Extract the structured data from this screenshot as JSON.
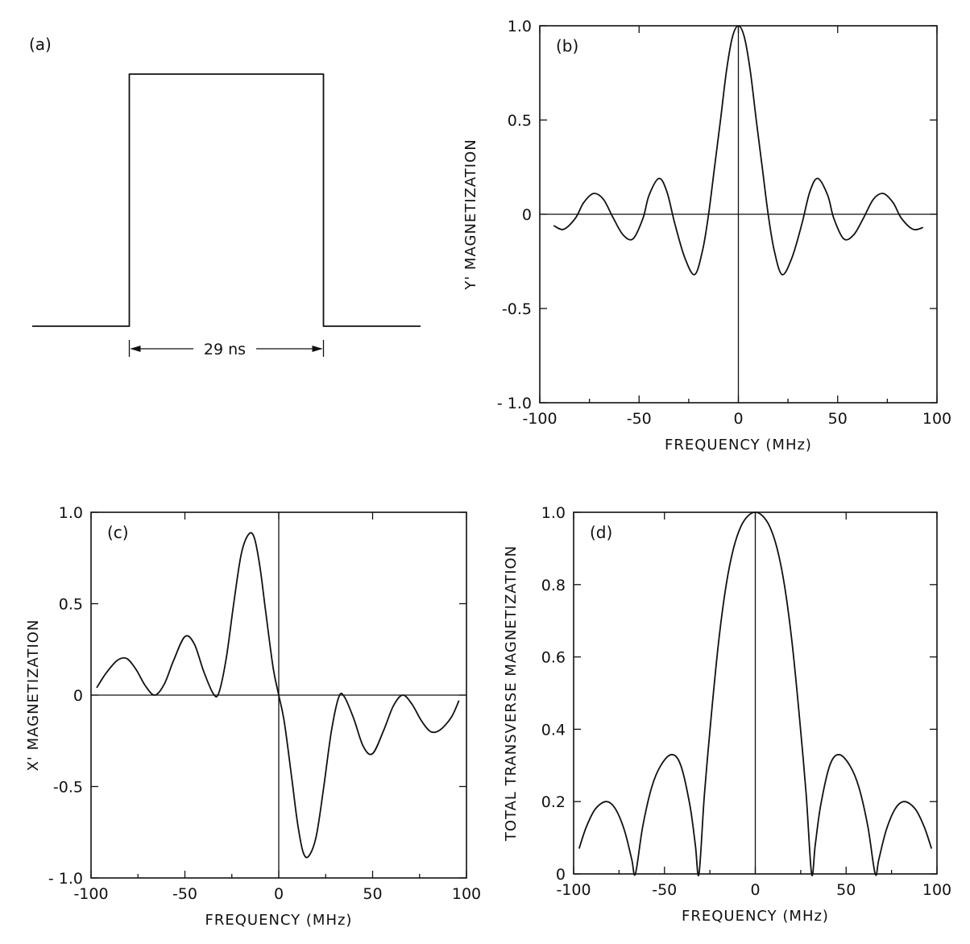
{
  "chart_data": [
    {
      "panel": "(a)",
      "type": "line",
      "title": "",
      "xlabel": "",
      "ylabel": "",
      "annotation": "29 ns",
      "x": [
        -2,
        -1,
        -1,
        1,
        1,
        2
      ],
      "y": [
        0,
        0,
        1,
        1,
        0,
        0
      ]
    },
    {
      "panel": "(b)",
      "type": "line",
      "title": "",
      "xlabel": "FREQUENCY (MHz)",
      "ylabel": "Y' MAGNETIZATION",
      "xlim": [
        -100,
        100
      ],
      "ylim": [
        -1.0,
        1.0
      ],
      "xticks": [
        -100,
        -50,
        0,
        50,
        100
      ],
      "xtick_labels": [
        "-100",
        "-50",
        "0",
        "50",
        "100"
      ],
      "yticks": [
        -1.0,
        -0.5,
        0,
        0.5,
        1.0
      ],
      "ytick_labels": [
        "- 1.0",
        "-0.5",
        "0",
        "0.5",
        "1.0"
      ],
      "x": [
        -93,
        -88,
        -82,
        -78,
        -73,
        -68,
        -63,
        -58,
        -53,
        -48,
        -45,
        -40,
        -36,
        -32,
        -27,
        -22,
        -18,
        -15,
        -12,
        -9,
        -6,
        -3,
        0,
        3,
        6,
        9,
        12,
        15,
        18,
        22,
        27,
        32,
        36,
        40,
        45,
        48,
        53,
        58,
        63,
        68,
        73,
        78,
        82,
        88,
        93
      ],
      "y": [
        -0.06,
        -0.08,
        -0.02,
        0.06,
        0.11,
        0.08,
        -0.02,
        -0.11,
        -0.13,
        -0.02,
        0.1,
        0.19,
        0.12,
        -0.05,
        -0.23,
        -0.32,
        -0.19,
        0.0,
        0.25,
        0.5,
        0.76,
        0.94,
        1.0,
        0.94,
        0.76,
        0.5,
        0.25,
        0.0,
        -0.19,
        -0.32,
        -0.23,
        -0.05,
        0.12,
        0.19,
        0.1,
        -0.02,
        -0.13,
        -0.11,
        -0.02,
        0.08,
        0.11,
        0.06,
        -0.02,
        -0.08,
        -0.07
      ]
    },
    {
      "panel": "(c)",
      "type": "line",
      "title": "",
      "xlabel": "FREQUENCY (MHz)",
      "ylabel": "X' MAGNETIZATION",
      "xlim": [
        -100,
        100
      ],
      "ylim": [
        -1.0,
        1.0
      ],
      "xticks": [
        -100,
        -50,
        0,
        50,
        100
      ],
      "xtick_labels": [
        "-100",
        "-50",
        "0",
        "50",
        "100"
      ],
      "yticks": [
        -1.0,
        -0.5,
        0,
        0.5,
        1.0
      ],
      "ytick_labels": [
        "- 1.0",
        "-0.5",
        "0",
        "0.5",
        "1.0"
      ],
      "x": [
        -97,
        -92,
        -86,
        -81,
        -76,
        -71,
        -66,
        -61,
        -56,
        -50,
        -45,
        -40,
        -35,
        -32,
        -28,
        -24,
        -20,
        -16,
        -13,
        -10,
        -7,
        -3,
        0,
        3,
        7,
        10,
        13,
        16,
        20,
        24,
        28,
        32,
        35,
        40,
        45,
        50,
        56,
        61,
        66,
        71,
        76,
        81,
        86,
        92,
        96
      ],
      "y": [
        0.04,
        0.12,
        0.19,
        0.2,
        0.14,
        0.05,
        0.0,
        0.06,
        0.19,
        0.32,
        0.28,
        0.13,
        0.01,
        0.01,
        0.2,
        0.5,
        0.77,
        0.88,
        0.86,
        0.7,
        0.46,
        0.15,
        0.0,
        -0.15,
        -0.46,
        -0.7,
        -0.86,
        -0.88,
        -0.77,
        -0.5,
        -0.2,
        -0.01,
        -0.01,
        -0.13,
        -0.28,
        -0.32,
        -0.19,
        -0.06,
        0.0,
        -0.05,
        -0.14,
        -0.2,
        -0.19,
        -0.12,
        -0.03
      ]
    },
    {
      "panel": "(d)",
      "type": "line",
      "title": "",
      "xlabel": "FREQUENCY (MHz)",
      "ylabel": "TOTAL TRANSVERSE MAGNETIZATION",
      "xlim": [
        -100,
        100
      ],
      "ylim": [
        0,
        1.0
      ],
      "xticks": [
        -100,
        -50,
        0,
        50,
        100
      ],
      "xtick_labels": [
        "-100",
        "-50",
        "0",
        "50",
        "100"
      ],
      "yticks": [
        0,
        0.2,
        0.4,
        0.6,
        0.8,
        1.0
      ],
      "ytick_labels": [
        "0",
        "0.2",
        "0.4",
        "0.6",
        "0.8",
        "1.0"
      ],
      "x": [
        -97,
        -93,
        -88,
        -82,
        -77,
        -72,
        -68,
        -66,
        -62,
        -57,
        -52,
        -46,
        -41,
        -36,
        -33,
        -31,
        -28,
        -24,
        -20,
        -16,
        -12,
        -8,
        -4,
        0,
        4,
        8,
        12,
        16,
        20,
        24,
        28,
        31,
        33,
        36,
        41,
        46,
        52,
        57,
        62,
        66,
        68,
        72,
        77,
        82,
        88,
        93,
        97
      ],
      "y": [
        0.07,
        0.13,
        0.18,
        0.2,
        0.18,
        0.12,
        0.04,
        0.0,
        0.13,
        0.24,
        0.3,
        0.33,
        0.3,
        0.19,
        0.08,
        0.0,
        0.22,
        0.45,
        0.65,
        0.8,
        0.9,
        0.96,
        0.99,
        1.0,
        0.99,
        0.96,
        0.9,
        0.8,
        0.65,
        0.45,
        0.22,
        0.0,
        0.08,
        0.19,
        0.3,
        0.33,
        0.3,
        0.24,
        0.13,
        0.0,
        0.04,
        0.12,
        0.18,
        0.2,
        0.18,
        0.13,
        0.07
      ]
    }
  ]
}
